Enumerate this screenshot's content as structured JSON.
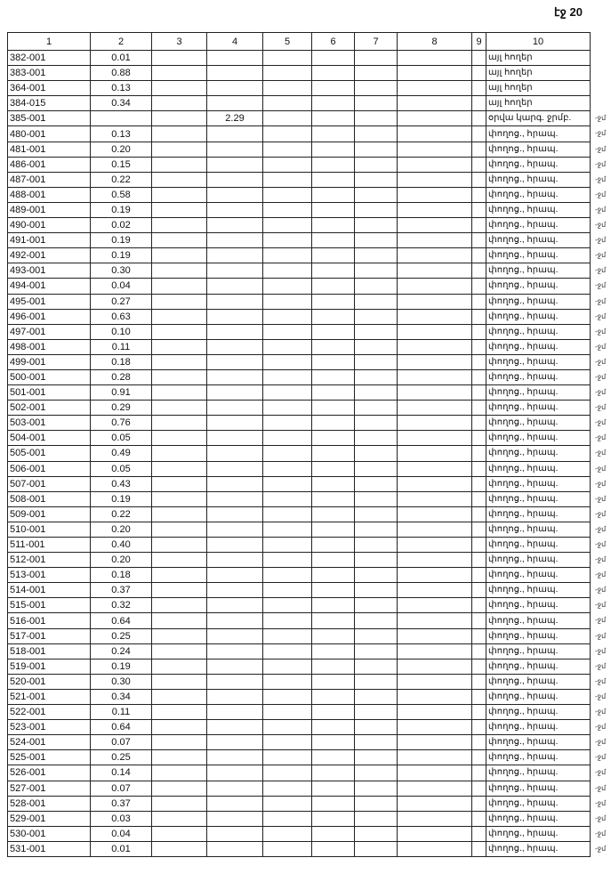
{
  "page_label": "էջ 20",
  "headers": [
    "1",
    "2",
    "3",
    "4",
    "5",
    "6",
    "7",
    "8",
    "9",
    "10"
  ],
  "margin_mark": "-ջմ",
  "rows": [
    [
      "382-001",
      "0.01",
      "",
      "",
      "այլ հողեր"
    ],
    [
      "383-001",
      "0.88",
      "",
      "",
      "այլ հողեր"
    ],
    [
      "364-001",
      "0.13",
      "",
      "",
      "այլ հողեր"
    ],
    [
      "384-015",
      "0.34",
      "",
      "",
      "այլ հողեր"
    ],
    [
      "385-001",
      "",
      "",
      "2.29",
      "օրվա կարգ. ջրմբ."
    ],
    [
      "480-001",
      "0.13",
      "",
      "",
      "փողոց., հրապ."
    ],
    [
      "481-001",
      "0.20",
      "",
      "",
      "փողոց., հրապ."
    ],
    [
      "486-001",
      "0.15",
      "",
      "",
      "փողոց., հրապ."
    ],
    [
      "487-001",
      "0.22",
      "",
      "",
      "փողոց., հրապ."
    ],
    [
      "488-001",
      "0.58",
      "",
      "",
      "փողոց., հրապ."
    ],
    [
      "489-001",
      "0.19",
      "",
      "",
      "փողոց., հրապ."
    ],
    [
      "490-001",
      "0.02",
      "",
      "",
      "փողոց., հրապ."
    ],
    [
      "491-001",
      "0.19",
      "",
      "",
      "փողոց., հրապ."
    ],
    [
      "492-001",
      "0.19",
      "",
      "",
      "փողոց., հրապ."
    ],
    [
      "493-001",
      "0.30",
      "",
      "",
      "փողոց., հրապ."
    ],
    [
      "494-001",
      "0.04",
      "",
      "",
      "փողոց., հրապ."
    ],
    [
      "495-001",
      "0.27",
      "",
      "",
      "փողոց., հրապ."
    ],
    [
      "496-001",
      "0.63",
      "",
      "",
      "փողոց., հրապ."
    ],
    [
      "497-001",
      "0.10",
      "",
      "",
      "փողոց., հրապ."
    ],
    [
      "498-001",
      "0.11",
      "",
      "",
      "փողոց., հրապ."
    ],
    [
      "499-001",
      "0.18",
      "",
      "",
      "փողոց., հրապ."
    ],
    [
      "500-001",
      "0.28",
      "",
      "",
      "փողոց., հրապ."
    ],
    [
      "501-001",
      "0.91",
      "",
      "",
      "փողոց., հրապ."
    ],
    [
      "502-001",
      "0.29",
      "",
      "",
      "փողոց., հրապ."
    ],
    [
      "503-001",
      "0.76",
      "",
      "",
      "փողոց., հրապ."
    ],
    [
      "504-001",
      "0.05",
      "",
      "",
      "փողոց., հրապ."
    ],
    [
      "505-001",
      "0.49",
      "",
      "",
      "փողոց., հրապ."
    ],
    [
      "506-001",
      "0.05",
      "",
      "",
      "փողոց., հրապ."
    ],
    [
      "507-001",
      "0.43",
      "",
      "",
      "փողոց., հրապ."
    ],
    [
      "508-001",
      "0.19",
      "",
      "",
      "փողոց., հրապ."
    ],
    [
      "509-001",
      "0.22",
      "",
      "",
      "փողոց., հրապ."
    ],
    [
      "510-001",
      "0.20",
      "",
      "",
      "փողոց., հրապ."
    ],
    [
      "511-001",
      "0.40",
      "",
      "",
      "փողոց., հրապ."
    ],
    [
      "512-001",
      "0.20",
      "",
      "",
      "փողոց., հրապ."
    ],
    [
      "513-001",
      "0.18",
      "",
      "",
      "փողոց., հրապ."
    ],
    [
      "514-001",
      "0.37",
      "",
      "",
      "փողոց., հրապ."
    ],
    [
      "515-001",
      "0.32",
      "",
      "",
      "փողոց., հրապ."
    ],
    [
      "516-001",
      "0.64",
      "",
      "",
      "փողոց., հրապ."
    ],
    [
      "517-001",
      "0.25",
      "",
      "",
      "փողոց., հրապ."
    ],
    [
      "518-001",
      "0.24",
      "",
      "",
      "փողոց., հրապ."
    ],
    [
      "519-001",
      "0.19",
      "",
      "",
      "փողոց., հրապ."
    ],
    [
      "520-001",
      "0.30",
      "",
      "",
      "փողոց., հրապ."
    ],
    [
      "521-001",
      "0.34",
      "",
      "",
      "փողոց., հրապ."
    ],
    [
      "522-001",
      "0.11",
      "",
      "",
      "փողոց., հրապ."
    ],
    [
      "523-001",
      "0.64",
      "",
      "",
      "փողոց., հրապ."
    ],
    [
      "524-001",
      "0.07",
      "",
      "",
      "փողոց., հրապ."
    ],
    [
      "525-001",
      "0.25",
      "",
      "",
      "փողոց., հրապ."
    ],
    [
      "526-001",
      "0.14",
      "",
      "",
      "փողոց., հրապ."
    ],
    [
      "527-001",
      "0.07",
      "",
      "",
      "փողոց., հրապ."
    ],
    [
      "528-001",
      "0.37",
      "",
      "",
      "փողոց., հրապ."
    ],
    [
      "529-001",
      "0.03",
      "",
      "",
      "փողոց., հրապ."
    ],
    [
      "530-001",
      "0.04",
      "",
      "",
      "փողոց., հրապ."
    ],
    [
      "531-001",
      "0.01",
      "",
      "",
      "փողոց., հրապ."
    ]
  ]
}
